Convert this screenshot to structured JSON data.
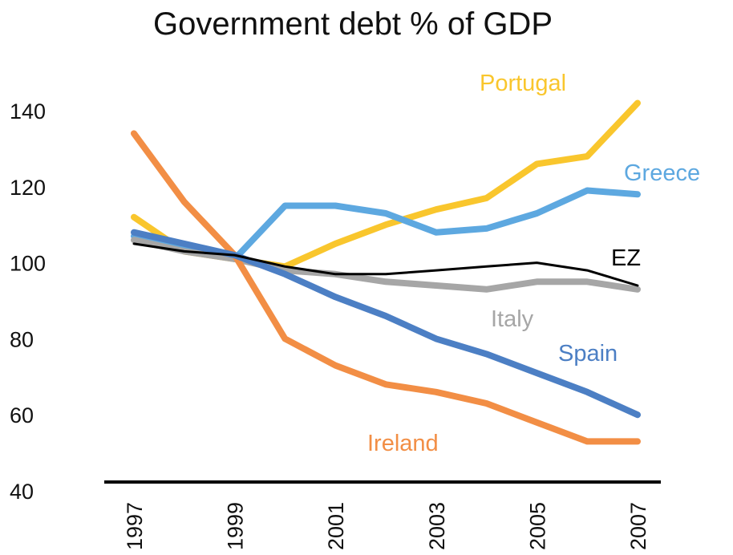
{
  "chart_data": {
    "type": "line",
    "title": "Government debt % of GDP",
    "xlabel": "",
    "ylabel": "",
    "x": [
      1997,
      1998,
      1999,
      2000,
      2001,
      2002,
      2003,
      2004,
      2005,
      2006,
      2007
    ],
    "x_tick_labels": [
      "1997",
      "1999",
      "2001",
      "2003",
      "2005",
      "2007"
    ],
    "y_tick_labels": [
      "140",
      "120",
      "100",
      "80",
      "60",
      "40"
    ],
    "ylim": [
      40,
      140
    ],
    "xlim": [
      1997,
      2007
    ],
    "grid": false,
    "legend": "inline labels",
    "series": [
      {
        "name": "Portugal",
        "color": "#f9c62d",
        "values": [
          112,
          103,
          101,
          99,
          105,
          110,
          114,
          117,
          126,
          128,
          142
        ]
      },
      {
        "name": "Greece",
        "color": "#5da8e0",
        "values": [
          107,
          104,
          101,
          115,
          115,
          113,
          108,
          109,
          113,
          119,
          118
        ]
      },
      {
        "name": "EZ",
        "color": "#000000",
        "values": [
          105,
          103,
          102,
          99,
          97,
          97,
          98,
          99,
          100,
          98,
          94
        ]
      },
      {
        "name": "Italy",
        "color": "#a6a6a6",
        "values": [
          106,
          103,
          101,
          98,
          97,
          95,
          94,
          93,
          95,
          95,
          93
        ]
      },
      {
        "name": "Spain",
        "color": "#4c7fc4",
        "values": [
          108,
          105,
          102,
          97,
          91,
          86,
          80,
          76,
          71,
          66,
          60
        ]
      },
      {
        "name": "Ireland",
        "color": "#f28e45",
        "values": [
          134,
          116,
          102,
          80,
          73,
          68,
          66,
          63,
          58,
          53,
          53
        ]
      }
    ]
  }
}
